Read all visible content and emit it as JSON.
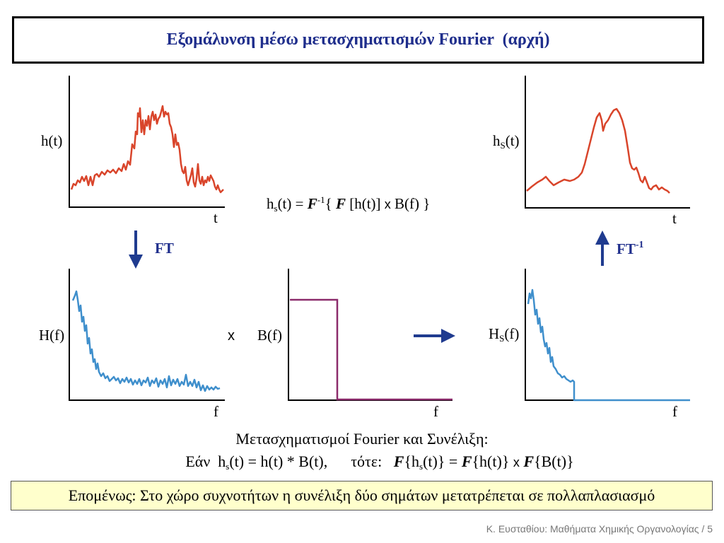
{
  "title": "Εξομάλυνση μέσω μετασχηματισμών Fourier  (αρχή)",
  "plots": {
    "h_t": {
      "ylabel": "h(t)",
      "xlabel": "t"
    },
    "hs_t": {
      "ylabel_main": "h",
      "ylabel_sub": "S",
      "ylabel_rest": "(t)",
      "xlabel": "t"
    },
    "H_f": {
      "ylabel": "H(f)",
      "xlabel": "f"
    },
    "B_f": {
      "ylabel": "B(f)",
      "xlabel": "f"
    },
    "Hs_f": {
      "ylabel_main": "H",
      "ylabel_sub": "S",
      "ylabel_rest": "(f)",
      "xlabel": "f"
    }
  },
  "arrows": {
    "ft_label": "FT",
    "ift_label": "FT",
    "ift_sup": "-1",
    "times_symbol": "x"
  },
  "formula": {
    "lhs": "h",
    "lhs_sub": "s",
    "lhs_rest": "(t) = ",
    "finv": "F",
    "finv_sup": "-1",
    "open": "{ ",
    "f": "F",
    "inner": " [h(t)]  ",
    "x": "x",
    "rest": "  B(f) }"
  },
  "convolution": {
    "heading": "Μετασχηματισμοί Fourier και Συνέλιξη:",
    "eq_part1": "Εάν  h",
    "eq_sub1": "s",
    "eq_part2": "(t) = h(t) * B(t),      τότε:   ",
    "eq_F1": "F",
    "eq_part3": "{h",
    "eq_sub2": "s",
    "eq_part4": "(t)} = ",
    "eq_F2": "F",
    "eq_part5": "{h(t)} ",
    "eq_x": "x",
    "eq_F3": " F",
    "eq_part6": "{B(t)}"
  },
  "conclusion": "Επομένως: Στο χώρο συχνοτήτων η συνέλιξη δύο σημάτων μετατρέπεται σε πολλαπλασιασμό",
  "footer": "Κ. Ευσταθίου: Μαθήματα Χημικής Οργανολογίας / 5",
  "colors": {
    "title": "#1f2e8c",
    "signal": "#d9452b",
    "spectrum": "#3f8fcc",
    "filter": "#8b2b6b",
    "arrow": "#1f3b8f",
    "conclusion_bg": "#ffffcc"
  }
}
